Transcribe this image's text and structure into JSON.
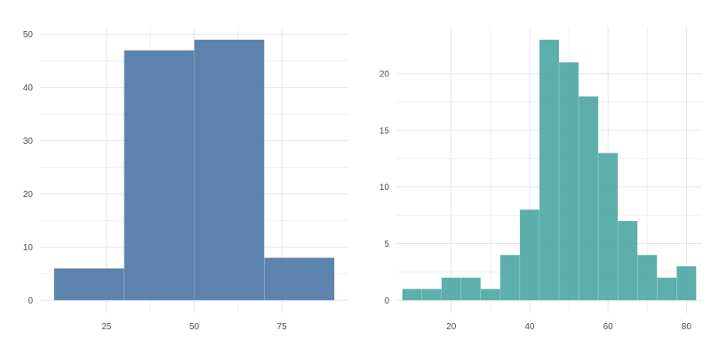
{
  "chart_data": [
    {
      "type": "bar",
      "subtype": "histogram",
      "title": "",
      "xlabel": "",
      "ylabel": "",
      "color": "#4a76a4",
      "grid": true,
      "xlim": [
        6,
        94
      ],
      "ylim": [
        -2.45,
        51.45
      ],
      "xticks": [
        25,
        50,
        75
      ],
      "xtick_labels": [
        "25",
        "50",
        "75"
      ],
      "yticks": [
        0,
        10,
        20,
        30,
        40,
        50
      ],
      "ytick_labels": [
        "0",
        "10",
        "20",
        "30",
        "40",
        "50"
      ],
      "bins": [
        {
          "x0": 10,
          "x1": 30,
          "count": 6
        },
        {
          "x0": 30,
          "x1": 50,
          "count": 47
        },
        {
          "x0": 50,
          "x1": 70,
          "count": 49
        },
        {
          "x0": 70,
          "x1": 90,
          "count": 8
        }
      ]
    },
    {
      "type": "bar",
      "subtype": "histogram",
      "title": "",
      "xlabel": "",
      "ylabel": "",
      "color": "#4aa6a2",
      "grid": true,
      "xlim": [
        6,
        84
      ],
      "ylim": [
        -1.15,
        24.15
      ],
      "xticks": [
        20,
        40,
        60,
        80
      ],
      "xtick_labels": [
        "20",
        "40",
        "60",
        "80"
      ],
      "yticks": [
        0,
        5,
        10,
        15,
        20
      ],
      "ytick_labels": [
        "0",
        "5",
        "10",
        "15",
        "20"
      ],
      "bins": [
        {
          "x0": 7.5,
          "x1": 12.5,
          "count": 1
        },
        {
          "x0": 12.5,
          "x1": 17.5,
          "count": 1
        },
        {
          "x0": 17.5,
          "x1": 22.5,
          "count": 2
        },
        {
          "x0": 22.5,
          "x1": 27.5,
          "count": 2
        },
        {
          "x0": 27.5,
          "x1": 32.5,
          "count": 1
        },
        {
          "x0": 32.5,
          "x1": 37.5,
          "count": 4
        },
        {
          "x0": 37.5,
          "x1": 42.5,
          "count": 8
        },
        {
          "x0": 42.5,
          "x1": 47.5,
          "count": 23
        },
        {
          "x0": 47.5,
          "x1": 52.5,
          "count": 21
        },
        {
          "x0": 52.5,
          "x1": 57.5,
          "count": 18
        },
        {
          "x0": 57.5,
          "x1": 62.5,
          "count": 13
        },
        {
          "x0": 62.5,
          "x1": 67.5,
          "count": 7
        },
        {
          "x0": 67.5,
          "x1": 72.5,
          "count": 4
        },
        {
          "x0": 72.5,
          "x1": 77.5,
          "count": 2
        },
        {
          "x0": 77.5,
          "x1": 82.5,
          "count": 3
        }
      ]
    }
  ]
}
